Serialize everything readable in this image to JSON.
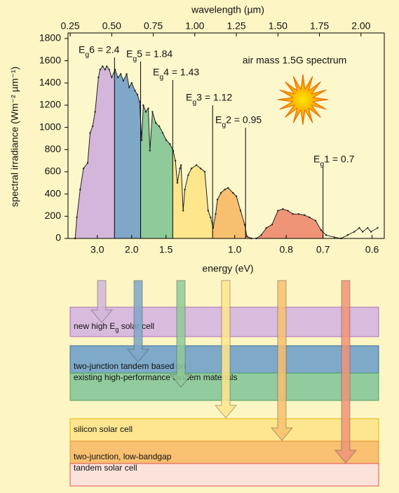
{
  "chart_data": {
    "type": "line",
    "x_label_top": "wavelength (µm)",
    "x_label_bottom": "energy (eV)",
    "y_label": "spectral irradiance (Wm⁻² µm⁻¹)",
    "annotation": "air mass 1.5G spectrum",
    "xlim": [
      0.237,
      2.14
    ],
    "ylim": [
      0,
      1850
    ],
    "xticks": [
      {
        "value": 0.25,
        "label": "0.25"
      },
      {
        "value": 0.5,
        "label": "0.50"
      },
      {
        "value": 0.75,
        "label": "0.75"
      },
      {
        "value": 1.0,
        "label": "1.00"
      },
      {
        "value": 1.25,
        "label": "1.25"
      },
      {
        "value": 1.5,
        "label": "1.50"
      },
      {
        "value": 1.75,
        "label": "1.75"
      },
      {
        "value": 2.0,
        "label": "2.00"
      }
    ],
    "yticks": [
      0,
      200,
      400,
      600,
      800,
      1000,
      1200,
      1400,
      1600,
      1800
    ],
    "x2ticks": [
      {
        "value": 3.0,
        "label": "3.0"
      },
      {
        "value": 2.0,
        "label": "2.0"
      },
      {
        "value": 1.5,
        "label": "1.5"
      },
      {
        "value": 1.0,
        "label": "1.0"
      },
      0.8,
      0.7,
      0.6
    ],
    "color": "#222222",
    "x": [
      0.28,
      0.29,
      0.31,
      0.33,
      0.355,
      0.37,
      0.385,
      0.4,
      0.42,
      0.43,
      0.445,
      0.46,
      0.47,
      0.485,
      0.5,
      0.52,
      0.537,
      0.554,
      0.57,
      0.59,
      0.605,
      0.62,
      0.64,
      0.655,
      0.668,
      0.68,
      0.69,
      0.705,
      0.72,
      0.73,
      0.745,
      0.765,
      0.786,
      0.807,
      0.828,
      0.85,
      0.87,
      0.883,
      0.895,
      0.91,
      0.917,
      0.93,
      0.94,
      0.96,
      0.98,
      1.01,
      1.035,
      1.06,
      1.08,
      1.095,
      1.11,
      1.125,
      1.136,
      1.157,
      1.18,
      1.2,
      1.23,
      1.25,
      1.275,
      1.3,
      1.313,
      1.34,
      1.37,
      1.4,
      1.43,
      1.465,
      1.5,
      1.53,
      1.56,
      1.59,
      1.625,
      1.66,
      1.69,
      1.727,
      1.76,
      1.79,
      1.84,
      1.88,
      1.92,
      1.96,
      1.99,
      2.01,
      2.04,
      2.06,
      2.1
    ],
    "values": [
      0,
      190,
      440,
      630,
      680,
      950,
      1010,
      1140,
      1450,
      1520,
      1550,
      1520,
      1550,
      1520,
      1450,
      1520,
      1450,
      1480,
      1420,
      1480,
      1360,
      1400,
      1330,
      1295,
      1230,
      885,
      1200,
      1140,
      1170,
      790,
      1140,
      1040,
      1010,
      950,
      885,
      850,
      790,
      700,
      500,
      630,
      660,
      250,
      440,
      570,
      630,
      660,
      630,
      600,
      250,
      190,
      95,
      220,
      350,
      410,
      440,
      455,
      410,
      380,
      250,
      125,
      20,
      0,
      0,
      30,
      95,
      125,
      250,
      265,
      250,
      220,
      220,
      210,
      190,
      160,
      75,
      30,
      10,
      0,
      30,
      60,
      95,
      60,
      95,
      60,
      95
    ],
    "bandgaps": [
      {
        "label": "Eg6 = 2.4",
        "value": 2.4,
        "color": "#d4b6da"
      },
      {
        "label": "Eg5 = 1.84",
        "value": 1.84,
        "color": "#7ea7c8"
      },
      {
        "label": "Eg4 = 1.43",
        "value": 1.43,
        "color": "#8fca9a"
      },
      {
        "label": "Eg3 = 1.12",
        "value": 1.12,
        "color": "#fde68c"
      },
      {
        "label": "Eg2 = 0.95",
        "value": 0.95,
        "color": "#f8bf6e"
      },
      {
        "label": "Eg1 = 0.7",
        "value": 0.7,
        "color": "#f09478"
      }
    ]
  },
  "cells": [
    {
      "label": "new high Eg solar cell",
      "color": "#d9bbdd"
    },
    {
      "label": "two-junction tandem based on",
      "color": "#7fa9c9"
    },
    {
      "label": "existing high-performance tandem materials",
      "color": "#92cb9d"
    },
    {
      "label": "silicon solar cell",
      "color": "#fde68f"
    },
    {
      "label": "two-junction, low-bandgap",
      "color": "#f8c070"
    },
    {
      "label": "tandem solar cell",
      "color": "#fbe3dc"
    }
  ]
}
